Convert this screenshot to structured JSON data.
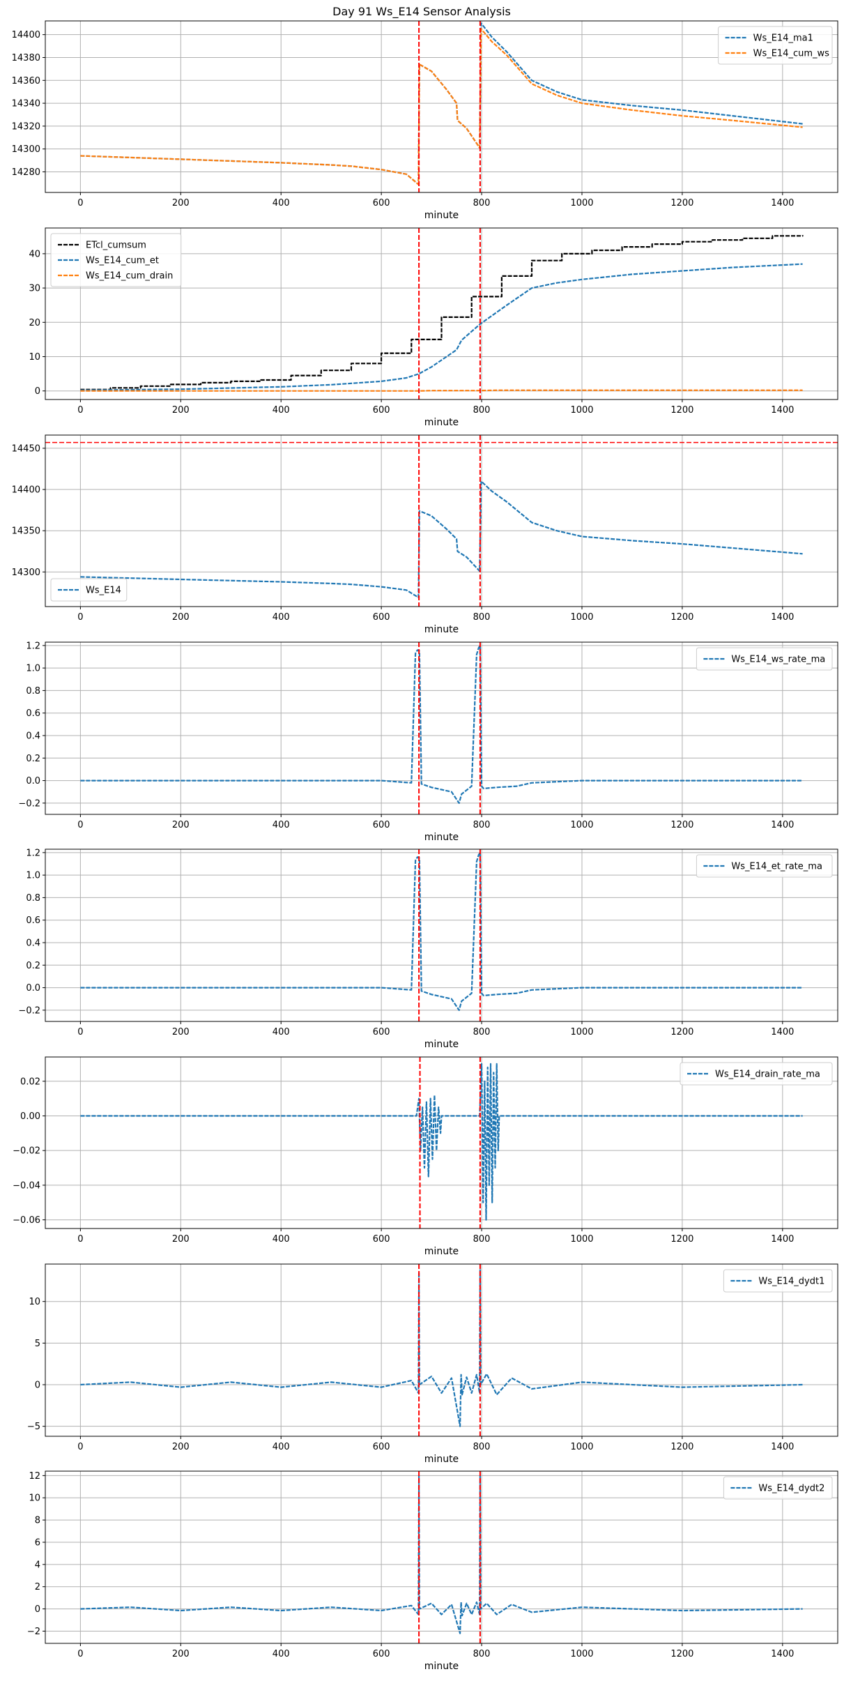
{
  "figure": {
    "title": "Day 91 Ws_E14 Sensor Analysis"
  },
  "colors": {
    "blue": "#1f77b4",
    "orange": "#ff7f0e",
    "black": "#000000",
    "red": "#ff0000",
    "grid": "#b0b0b0"
  },
  "chart_data": [
    {
      "type": "line",
      "title": "",
      "xlabel": "minute",
      "ylabel": "",
      "xlim": [
        -70,
        1510
      ],
      "ylim": [
        14262,
        14412
      ],
      "xticks": [
        0,
        200,
        400,
        600,
        800,
        1000,
        1200,
        1400
      ],
      "yticks": [
        14280,
        14300,
        14320,
        14340,
        14360,
        14380,
        14400
      ],
      "grid": true,
      "legend_loc": "top-right",
      "vlines": [
        675,
        797
      ],
      "hlines": [],
      "series": [
        {
          "name": "Ws_E14_ma1",
          "color": "#1f77b4",
          "style": "dashed",
          "x": [
            0,
            200,
            400,
            500,
            540,
            600,
            650,
            674,
            676,
            700,
            730,
            750,
            752,
            770,
            796,
            799,
            820,
            850,
            900,
            950,
            1000,
            1100,
            1200,
            1300,
            1440
          ],
          "y": [
            14294,
            14291,
            14288,
            14286,
            14285,
            14282,
            14278,
            14269,
            14374,
            14368,
            14352,
            14340,
            14325,
            14318,
            14301,
            14410,
            14398,
            14385,
            14360,
            14350,
            14343,
            14338,
            14334,
            14329,
            14322
          ]
        },
        {
          "name": "Ws_E14_cum_ws",
          "color": "#ff7f0e",
          "style": "dashed",
          "x": [
            0,
            200,
            400,
            500,
            540,
            600,
            650,
            674,
            676,
            700,
            730,
            750,
            752,
            770,
            796,
            799,
            820,
            850,
            900,
            950,
            1000,
            1100,
            1200,
            1300,
            1440
          ],
          "y": [
            14294,
            14291,
            14288,
            14286,
            14285,
            14282,
            14278,
            14269,
            14374,
            14368,
            14352,
            14340,
            14325,
            14318,
            14301,
            14405,
            14394,
            14382,
            14357,
            14347,
            14340,
            14334,
            14329,
            14325,
            14319
          ]
        }
      ]
    },
    {
      "type": "line",
      "title": "",
      "xlabel": "minute",
      "ylabel": "",
      "xlim": [
        -70,
        1510
      ],
      "ylim": [
        -2.5,
        47.5
      ],
      "xticks": [
        0,
        200,
        400,
        600,
        800,
        1000,
        1200,
        1400
      ],
      "yticks": [
        0,
        10,
        20,
        30,
        40
      ],
      "grid": true,
      "legend_loc": "top-left",
      "vlines": [
        675,
        797
      ],
      "hlines": [],
      "series": [
        {
          "name": "ETcl_cumsum",
          "color": "#000000",
          "style": "dashed",
          "step": true,
          "x": [
            0,
            60,
            120,
            180,
            240,
            300,
            360,
            420,
            480,
            540,
            600,
            660,
            720,
            780,
            840,
            900,
            960,
            1020,
            1080,
            1140,
            1200,
            1260,
            1320,
            1380,
            1440
          ],
          "y": [
            0.4,
            0.9,
            1.4,
            1.9,
            2.4,
            2.8,
            3.2,
            4.5,
            6.0,
            8.0,
            11.0,
            15.0,
            21.5,
            27.5,
            33.5,
            38.0,
            40.0,
            41.0,
            42.0,
            42.8,
            43.5,
            44.0,
            44.5,
            45.2,
            45.4
          ]
        },
        {
          "name": "Ws_E14_cum_et",
          "color": "#1f77b4",
          "style": "dashed",
          "x": [
            0,
            200,
            400,
            500,
            600,
            650,
            675,
            700,
            750,
            760,
            797,
            850,
            900,
            950,
            1000,
            1100,
            1200,
            1300,
            1440
          ],
          "y": [
            0.2,
            0.5,
            1.2,
            1.8,
            2.8,
            3.8,
            5.0,
            7.0,
            12.0,
            14.8,
            19.5,
            25.0,
            30.0,
            31.5,
            32.5,
            34.0,
            35.0,
            36.0,
            37.0
          ]
        },
        {
          "name": "Ws_E14_cum_drain",
          "color": "#ff7f0e",
          "style": "dashed",
          "x": [
            0,
            675,
            700,
            797,
            830,
            1440
          ],
          "y": [
            0,
            0,
            0.1,
            0.1,
            0.2,
            0.2
          ]
        }
      ]
    },
    {
      "type": "line",
      "title": "",
      "xlabel": "minute",
      "ylabel": "",
      "xlim": [
        -70,
        1510
      ],
      "ylim": [
        14258,
        14466
      ],
      "xticks": [
        0,
        200,
        400,
        600,
        800,
        1000,
        1200,
        1400
      ],
      "yticks": [
        14300,
        14350,
        14400,
        14450
      ],
      "grid": true,
      "legend_loc": "bottom-left",
      "vlines": [
        675,
        797
      ],
      "hlines": [
        14457
      ],
      "series": [
        {
          "name": "Ws_E14",
          "color": "#1f77b4",
          "style": "dashed",
          "x": [
            0,
            200,
            400,
            500,
            540,
            600,
            650,
            674,
            676,
            700,
            730,
            750,
            752,
            770,
            796,
            799,
            820,
            850,
            900,
            950,
            1000,
            1100,
            1200,
            1300,
            1440
          ],
          "y": [
            14294,
            14291,
            14288,
            14286,
            14285,
            14282,
            14278,
            14269,
            14374,
            14368,
            14352,
            14340,
            14325,
            14318,
            14301,
            14410,
            14398,
            14385,
            14360,
            14350,
            14343,
            14338,
            14334,
            14329,
            14322
          ]
        }
      ]
    },
    {
      "type": "line",
      "title": "",
      "xlabel": "minute",
      "ylabel": "",
      "xlim": [
        -70,
        1510
      ],
      "ylim": [
        -0.3,
        1.23
      ],
      "xticks": [
        0,
        200,
        400,
        600,
        800,
        1000,
        1200,
        1400
      ],
      "yticks": [
        -0.2,
        0.0,
        0.2,
        0.4,
        0.6,
        0.8,
        1.0,
        1.2
      ],
      "ytick_labels": [
        "−0.2",
        "0.0",
        "0.2",
        "0.4",
        "0.6",
        "0.8",
        "1.0",
        "1.2"
      ],
      "grid": true,
      "legend_loc": "top-right",
      "vlines": [
        675,
        797
      ],
      "hlines": [],
      "series": [
        {
          "name": "Ws_E14_ws_rate_ma",
          "color": "#1f77b4",
          "style": "dashed",
          "x": [
            0,
            300,
            600,
            660,
            668,
            672,
            676,
            680,
            700,
            740,
            755,
            760,
            780,
            790,
            794,
            797,
            800,
            804,
            830,
            870,
            900,
            1000,
            1200,
            1440
          ],
          "y": [
            0,
            0,
            0,
            -0.02,
            1.13,
            1.16,
            1.15,
            -0.03,
            -0.06,
            -0.1,
            -0.2,
            -0.12,
            -0.05,
            1.12,
            1.18,
            1.2,
            -0.05,
            -0.07,
            -0.06,
            -0.05,
            -0.02,
            0,
            0,
            0
          ]
        }
      ]
    },
    {
      "type": "line",
      "title": "",
      "xlabel": "minute",
      "ylabel": "",
      "xlim": [
        -70,
        1510
      ],
      "ylim": [
        -0.3,
        1.23
      ],
      "xticks": [
        0,
        200,
        400,
        600,
        800,
        1000,
        1200,
        1400
      ],
      "yticks": [
        -0.2,
        0.0,
        0.2,
        0.4,
        0.6,
        0.8,
        1.0,
        1.2
      ],
      "ytick_labels": [
        "−0.2",
        "0.0",
        "0.2",
        "0.4",
        "0.6",
        "0.8",
        "1.0",
        "1.2"
      ],
      "grid": true,
      "legend_loc": "top-right",
      "vlines": [
        675,
        797
      ],
      "hlines": [],
      "series": [
        {
          "name": "Ws_E14_et_rate_ma",
          "color": "#1f77b4",
          "style": "dashed",
          "x": [
            0,
            300,
            600,
            660,
            668,
            672,
            676,
            680,
            700,
            740,
            755,
            760,
            780,
            790,
            794,
            797,
            800,
            804,
            830,
            870,
            900,
            1000,
            1200,
            1440
          ],
          "y": [
            0,
            0,
            0,
            -0.02,
            1.13,
            1.16,
            1.15,
            -0.03,
            -0.06,
            -0.1,
            -0.2,
            -0.12,
            -0.05,
            1.12,
            1.18,
            1.2,
            -0.05,
            -0.07,
            -0.06,
            -0.05,
            -0.02,
            0,
            0,
            0
          ]
        }
      ]
    },
    {
      "type": "line",
      "title": "",
      "xlabel": "minute",
      "ylabel": "",
      "xlim": [
        -70,
        1510
      ],
      "ylim": [
        -0.065,
        0.034
      ],
      "xticks": [
        0,
        200,
        400,
        600,
        800,
        1000,
        1200,
        1400
      ],
      "yticks": [
        -0.06,
        -0.04,
        -0.02,
        0.0,
        0.02
      ],
      "ytick_labels": [
        "−0.06",
        "−0.04",
        "−0.02",
        "0.00",
        "0.02"
      ],
      "grid": true,
      "legend_loc": "top-right",
      "vlines": [
        677,
        797
      ],
      "hlines": [],
      "series": [
        {
          "name": "Ws_E14_drain_rate_ma",
          "color": "#1f77b4",
          "style": "dashed",
          "x": [
            0,
            670,
            675,
            678,
            682,
            686,
            690,
            694,
            698,
            702,
            706,
            710,
            714,
            718,
            720,
            796,
            800,
            803,
            806,
            809,
            812,
            815,
            818,
            821,
            824,
            827,
            830,
            833,
            835,
            1440
          ],
          "y": [
            0,
            0,
            0.01,
            -0.02,
            0.005,
            -0.03,
            0.008,
            -0.035,
            0.01,
            -0.025,
            0.012,
            -0.02,
            0.005,
            -0.01,
            0,
            0,
            0.03,
            -0.05,
            0.02,
            -0.06,
            0.028,
            -0.04,
            0.03,
            -0.05,
            0.025,
            -0.03,
            0.03,
            -0.02,
            0,
            0
          ]
        }
      ]
    },
    {
      "type": "line",
      "title": "",
      "xlabel": "minute",
      "ylabel": "",
      "xlim": [
        -70,
        1510
      ],
      "ylim": [
        -6.2,
        14.5
      ],
      "xticks": [
        0,
        200,
        400,
        600,
        800,
        1000,
        1200,
        1400
      ],
      "yticks": [
        -5,
        0,
        5,
        10
      ],
      "ytick_labels": [
        "−5",
        "0",
        "5",
        "10"
      ],
      "grid": true,
      "legend_loc": "top-right",
      "vlines": [
        675,
        797
      ],
      "hlines": [],
      "series": [
        {
          "name": "Ws_E14_dydt1",
          "color": "#1f77b4",
          "style": "dashed",
          "x": [
            0,
            100,
            200,
            300,
            400,
            500,
            600,
            660,
            674,
            675,
            676,
            700,
            720,
            740,
            757,
            759,
            761,
            770,
            780,
            790,
            796,
            797,
            798,
            810,
            830,
            860,
            900,
            1000,
            1200,
            1440
          ],
          "y": [
            0,
            0.3,
            -0.3,
            0.3,
            -0.3,
            0.3,
            -0.3,
            0.5,
            -1,
            13.5,
            0,
            1,
            -1,
            0.8,
            -5,
            1.2,
            -1.2,
            0.9,
            -1,
            1.2,
            -1,
            13.8,
            0,
            1.3,
            -1.2,
            0.8,
            -0.5,
            0.3,
            -0.3,
            0
          ]
        }
      ]
    },
    {
      "type": "line",
      "title": "",
      "xlabel": "minute",
      "ylabel": "",
      "xlim": [
        -70,
        1510
      ],
      "ylim": [
        -3.1,
        12.4
      ],
      "xticks": [
        0,
        200,
        400,
        600,
        800,
        1000,
        1200,
        1400
      ],
      "yticks": [
        -2,
        0,
        2,
        4,
        6,
        8,
        10,
        12
      ],
      "ytick_labels": [
        "−2",
        "0",
        "2",
        "4",
        "6",
        "8",
        "10",
        "12"
      ],
      "grid": true,
      "legend_loc": "top-right",
      "vlines": [
        675,
        797
      ],
      "hlines": [],
      "series": [
        {
          "name": "Ws_E14_dydt2",
          "color": "#1f77b4",
          "style": "dashed",
          "x": [
            0,
            100,
            200,
            300,
            400,
            500,
            600,
            660,
            674,
            675,
            676,
            700,
            720,
            740,
            757,
            759,
            761,
            770,
            780,
            790,
            796,
            797,
            798,
            810,
            830,
            860,
            900,
            1000,
            1200,
            1440
          ],
          "y": [
            0,
            0.15,
            -0.15,
            0.15,
            -0.15,
            0.15,
            -0.15,
            0.3,
            -0.5,
            12.0,
            0,
            0.5,
            -0.5,
            0.4,
            -2.2,
            0.6,
            -0.6,
            0.5,
            -0.5,
            0.6,
            -0.5,
            12.0,
            0,
            0.5,
            -0.5,
            0.4,
            -0.3,
            0.15,
            -0.15,
            0
          ]
        }
      ]
    }
  ]
}
